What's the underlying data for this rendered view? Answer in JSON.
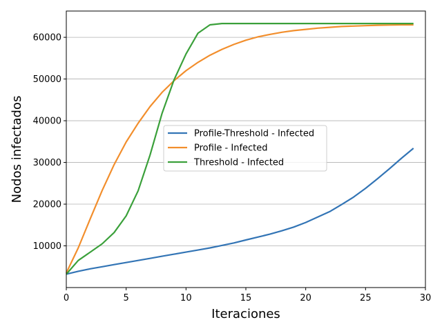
{
  "chart_data": {
    "type": "line",
    "title": "",
    "xlabel": "Iteraciones",
    "ylabel": "Nodos infectados",
    "xlim": [
      0,
      30
    ],
    "ylim": [
      0,
      66300
    ],
    "xticks": [
      0,
      5,
      10,
      15,
      20,
      25,
      30
    ],
    "yticks": [
      10000,
      20000,
      30000,
      40000,
      50000,
      60000
    ],
    "grid": "horizontal",
    "legend_position": "center-right",
    "x": [
      0,
      1,
      2,
      3,
      4,
      5,
      6,
      7,
      8,
      9,
      10,
      11,
      12,
      13,
      14,
      15,
      16,
      17,
      18,
      19,
      20,
      21,
      22,
      23,
      24,
      25,
      26,
      27,
      28,
      29
    ],
    "series": [
      {
        "name": "Profile-Threshold - Infected",
        "color": "#3274b5",
        "values": [
          3200,
          3900,
          4500,
          5000,
          5500,
          6000,
          6500,
          7000,
          7500,
          8000,
          8500,
          9000,
          9500,
          10100,
          10700,
          11400,
          12100,
          12800,
          13600,
          14500,
          15600,
          16900,
          18200,
          19900,
          21700,
          23800,
          26100,
          28500,
          31000,
          33400
        ]
      },
      {
        "name": "Profile - Infected",
        "color": "#f28e2c",
        "values": [
          3500,
          9500,
          16500,
          23300,
          29500,
          34900,
          39400,
          43400,
          46800,
          49600,
          52000,
          54000,
          55700,
          57100,
          58300,
          59300,
          60100,
          60700,
          61200,
          61600,
          61900,
          62200,
          62400,
          62600,
          62700,
          62800,
          62900,
          62950,
          63000,
          63000
        ]
      },
      {
        "name": "Threshold - Infected",
        "color": "#3aa03a",
        "values": [
          3200,
          6500,
          8500,
          10500,
          13200,
          17200,
          23200,
          31800,
          41800,
          49800,
          56000,
          61000,
          63000,
          63300,
          63300,
          63300,
          63300,
          63300,
          63300,
          63300,
          63300,
          63300,
          63300,
          63300,
          63300,
          63300,
          63300,
          63300,
          63300,
          63300
        ]
      }
    ]
  }
}
